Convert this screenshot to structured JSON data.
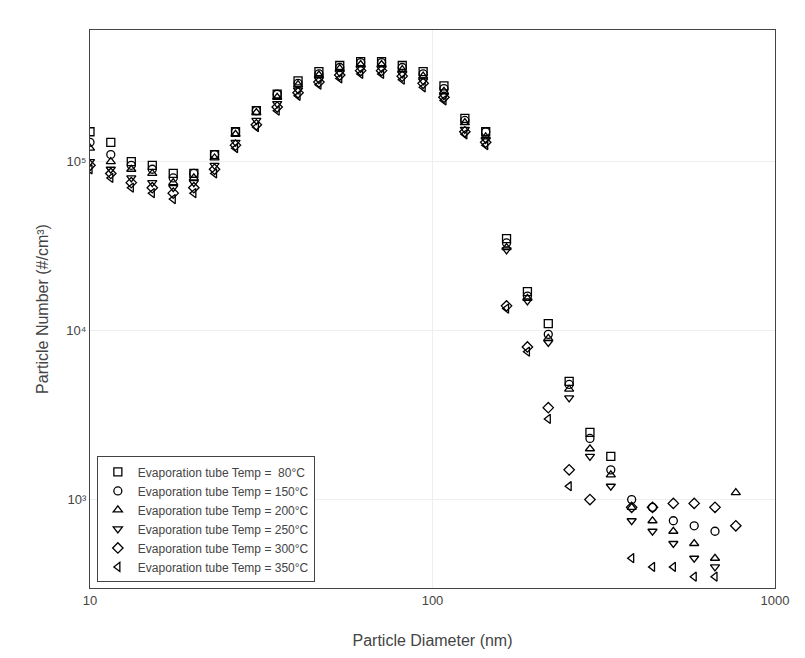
{
  "chart_data": {
    "type": "scatter",
    "xlabel": "Particle Diameter (nm)",
    "ylabel": "Particle Number (#/cm³)",
    "log": true,
    "grid": true,
    "legend": "lower left",
    "xlim": [
      10,
      1000
    ],
    "ylim": [
      300,
      600000
    ],
    "xticks": [
      10,
      100,
      1000
    ],
    "yticks": [
      {
        "value": 1000,
        "label": "10³"
      },
      {
        "value": 10000,
        "label": "10⁴"
      },
      {
        "value": 100000,
        "label": "10⁵"
      }
    ],
    "series": [
      {
        "name": "Evaporation tube Temp =  80°C",
        "marker": "square",
        "color": "#000000",
        "x": [
          10.0,
          11.5,
          13.2,
          15.2,
          17.5,
          20.1,
          23.1,
          26.6,
          30.6,
          35.2,
          40.5,
          46.6,
          53.6,
          61.7,
          71.0,
          81.6,
          93.9,
          108.0,
          124.3,
          143.0,
          164.5,
          189.3,
          217.8,
          250.6,
          288.2,
          331.6
        ],
        "values": [
          150000.0,
          130000.0,
          100000.0,
          95000.0,
          85000.0,
          85000.0,
          110000.0,
          150000.0,
          200000.0,
          250000.0,
          300000.0,
          340000.0,
          370000.0,
          390000.0,
          390000.0,
          370000.0,
          340000.0,
          280000.0,
          180000.0,
          150000.0,
          35000.0,
          17000.0,
          11000.0,
          5000.0,
          2500.0,
          1800.0
        ]
      },
      {
        "name": "Evaporation tube Temp = 150°C",
        "marker": "circle",
        "color": "#000000",
        "x": [
          10.0,
          11.5,
          13.2,
          15.2,
          17.5,
          20.1,
          23.1,
          26.6,
          30.6,
          35.2,
          40.5,
          46.6,
          53.6,
          61.7,
          71.0,
          81.6,
          93.9,
          108.0,
          124.3,
          143.0,
          164.5,
          189.3,
          217.8,
          250.6,
          288.2,
          331.6,
          381.5,
          438.9,
          504.9,
          580.9,
          668.0
        ],
        "values": [
          130000.0,
          110000.0,
          95000.0,
          90000.0,
          80000.0,
          85000.0,
          110000.0,
          150000.0,
          200000.0,
          250000.0,
          290000.0,
          330000.0,
          360000.0,
          385000.0,
          385000.0,
          360000.0,
          330000.0,
          270000.0,
          175000.0,
          150000.0,
          33000.0,
          16000.0,
          9500.0,
          4800.0,
          2300.0,
          1500.0,
          1000.0,
          900.0,
          750.0,
          700.0,
          650.0
        ]
      },
      {
        "name": "Evaporation tube Temp = 200°C",
        "marker": "triangle-up",
        "color": "#000000",
        "x": [
          10.0,
          11.5,
          13.2,
          15.2,
          17.5,
          20.1,
          23.1,
          26.6,
          30.6,
          35.2,
          40.5,
          46.6,
          53.6,
          61.7,
          71.0,
          81.6,
          93.9,
          108.0,
          124.3,
          143.0,
          164.5,
          189.3,
          217.8,
          250.6,
          288.2,
          331.6,
          381.5,
          438.9,
          504.9,
          580.9,
          668.0,
          768.4
        ],
        "values": [
          120000.0,
          100000.0,
          90000.0,
          85000.0,
          75000.0,
          80000.0,
          105000.0,
          145000.0,
          195000.0,
          240000.0,
          285000.0,
          325000.0,
          355000.0,
          375000.0,
          375000.0,
          350000.0,
          320000.0,
          260000.0,
          170000.0,
          140000.0,
          31000.0,
          15500.0,
          9000.0,
          4500.0,
          2000.0,
          1400.0,
          900.0,
          750.0,
          650.0,
          550.0,
          450.0,
          1100.0
        ]
      },
      {
        "name": "Evaporation tube Temp = 250°C",
        "marker": "triangle-down",
        "color": "#000000",
        "x": [
          10.0,
          11.5,
          13.2,
          15.2,
          17.5,
          20.1,
          23.1,
          26.6,
          30.6,
          35.2,
          40.5,
          46.6,
          53.6,
          61.7,
          71.0,
          81.6,
          93.9,
          108.0,
          124.3,
          143.0,
          164.5,
          189.3,
          217.8,
          250.6,
          288.2,
          331.6,
          381.5,
          438.9,
          504.9,
          580.9,
          668.0
        ],
        "values": [
          100000.0,
          90000.0,
          80000.0,
          75000.0,
          70000.0,
          75000.0,
          95000.0,
          130000.0,
          175000.0,
          220000.0,
          265000.0,
          305000.0,
          335000.0,
          355000.0,
          355000.0,
          330000.0,
          300000.0,
          245000.0,
          155000.0,
          135000.0,
          30000.0,
          15000.0,
          8500.0,
          4000.0,
          1800.0,
          1200.0,
          750.0,
          650.0,
          550.0,
          450.0,
          400.0
        ]
      },
      {
        "name": "Evaporation tube Temp = 300°C",
        "marker": "diamond",
        "color": "#000000",
        "x": [
          10.0,
          11.5,
          13.2,
          15.2,
          17.5,
          20.1,
          23.1,
          26.6,
          30.6,
          35.2,
          40.5,
          46.6,
          53.6,
          61.7,
          71.0,
          81.6,
          93.9,
          108.0,
          124.3,
          143.0,
          164.5,
          189.3,
          217.8,
          250.6,
          288.2,
          381.5,
          438.9,
          504.9,
          580.9,
          668.0,
          768.4
        ],
        "values": [
          95000.0,
          85000.0,
          75000.0,
          70000.0,
          65000.0,
          70000.0,
          90000.0,
          125000.0,
          165000.0,
          210000.0,
          255000.0,
          295000.0,
          325000.0,
          345000.0,
          345000.0,
          320000.0,
          290000.0,
          240000.0,
          150000.0,
          130000.0,
          14000.0,
          8000.0,
          3500.0,
          1500.0,
          1000.0,
          900.0,
          900.0,
          950.0,
          950.0,
          900.0,
          700.0
        ]
      },
      {
        "name": "Evaporation tube Temp = 350°C",
        "marker": "triangle-left",
        "color": "#000000",
        "x": [
          10.0,
          11.5,
          13.2,
          15.2,
          17.5,
          20.1,
          23.1,
          26.6,
          30.6,
          35.2,
          40.5,
          46.6,
          53.6,
          61.7,
          71.0,
          81.6,
          93.9,
          108.0,
          124.3,
          143.0,
          164.5,
          189.3,
          217.8,
          250.6,
          381.5,
          438.9,
          504.9,
          580.9,
          668.0
        ],
        "values": [
          90000.0,
          80000.0,
          70000.0,
          65000.0,
          60000.0,
          65000.0,
          85000.0,
          120000.0,
          160000.0,
          200000.0,
          245000.0,
          285000.0,
          310000.0,
          330000.0,
          330000.0,
          305000.0,
          275000.0,
          230000.0,
          145000.0,
          125000.0,
          13500.0,
          7500.0,
          3000.0,
          1200.0,
          450.0,
          400.0,
          400.0,
          350.0,
          350.0
        ]
      }
    ]
  }
}
